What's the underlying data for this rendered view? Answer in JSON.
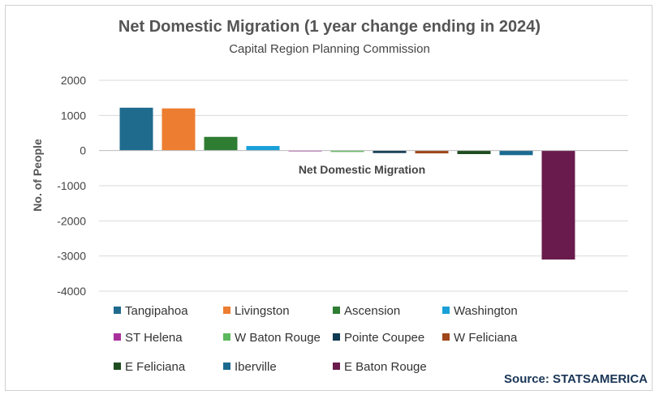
{
  "header": {
    "title": "Net Domestic Migration (1 year change ending in 2024)",
    "subtitle": "Capital Region Planning Commission"
  },
  "source": "Source: STATSAMERICA",
  "chart_data": {
    "type": "bar",
    "title": "Net Domestic Migration (1 year change ending in 2024)",
    "subtitle": "Capital Region Planning Commission",
    "xlabel": "",
    "ylabel": "No. of People",
    "category_label": "Net Domestic Migration",
    "ylim": [
      -4000,
      2000
    ],
    "yticks": [
      2000,
      1000,
      0,
      -1000,
      -2000,
      -3000,
      -4000
    ],
    "grid": true,
    "legend_position": "bottom",
    "series": [
      {
        "name": "Tangipahoa",
        "value": 1220,
        "color": "#1f6b8e"
      },
      {
        "name": "Livingston",
        "value": 1200,
        "color": "#ed7d31"
      },
      {
        "name": "Ascension",
        "value": 390,
        "color": "#2e7d32"
      },
      {
        "name": "Washington",
        "value": 130,
        "color": "#1aa0d8"
      },
      {
        "name": "ST Helena",
        "value": -10,
        "color": "#a8309c"
      },
      {
        "name": "W Baton Rouge",
        "value": -40,
        "color": "#5cb85c"
      },
      {
        "name": "Pointe Coupee",
        "value": -70,
        "color": "#0f3a52"
      },
      {
        "name": "W Feliciana",
        "value": -80,
        "color": "#a0461a"
      },
      {
        "name": "E Feliciana",
        "value": -100,
        "color": "#1e4d20"
      },
      {
        "name": "Iberville",
        "value": -130,
        "color": "#1a6a90"
      },
      {
        "name": "E Baton Rouge",
        "value": -3100,
        "color": "#6a1b4d"
      }
    ]
  }
}
